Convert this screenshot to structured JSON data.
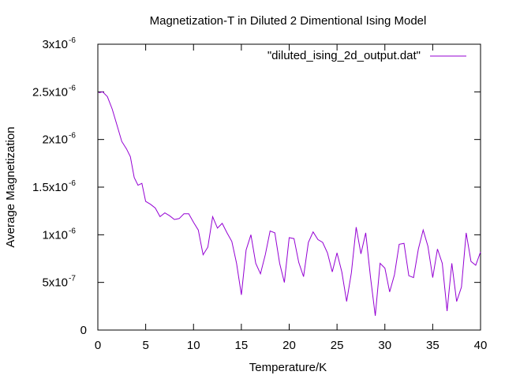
{
  "chart_data": {
    "type": "line",
    "title": "Magnetization-T in Diluted 2 Dimentional Ising Model",
    "xlabel": "Temperature/K",
    "ylabel": "Average Magnetization",
    "xlim": [
      0,
      40
    ],
    "ylim": [
      0,
      3e-06
    ],
    "grid": false,
    "legend_position": "top-right",
    "x_ticks": [
      {
        "value": 0,
        "label": "0"
      },
      {
        "value": 5,
        "label": "5"
      },
      {
        "value": 10,
        "label": "10"
      },
      {
        "value": 15,
        "label": "15"
      },
      {
        "value": 20,
        "label": "20"
      },
      {
        "value": 25,
        "label": "25"
      },
      {
        "value": 30,
        "label": "30"
      },
      {
        "value": 35,
        "label": "35"
      },
      {
        "value": 40,
        "label": "40"
      }
    ],
    "y_ticks": [
      {
        "value": 0,
        "mantissa": "0",
        "exponent": ""
      },
      {
        "value": 5e-07,
        "mantissa": "5x10",
        "exponent": "-7"
      },
      {
        "value": 1e-06,
        "mantissa": "1x10",
        "exponent": "-6"
      },
      {
        "value": 1.5e-06,
        "mantissa": "1.5x10",
        "exponent": "-6"
      },
      {
        "value": 2e-06,
        "mantissa": "2x10",
        "exponent": "-6"
      },
      {
        "value": 2.5e-06,
        "mantissa": "2.5x10",
        "exponent": "-6"
      },
      {
        "value": 3e-06,
        "mantissa": "3x10",
        "exponent": "-6"
      }
    ],
    "series": [
      {
        "name": "\"diluted_ising_2d_output.dat\"",
        "color": "#9400d3",
        "points": [
          [
            0.1,
            2.49e-06
          ],
          [
            0.5,
            2.5e-06
          ],
          [
            1.0,
            2.45e-06
          ],
          [
            1.5,
            2.32e-06
          ],
          [
            2.0,
            2.15e-06
          ],
          [
            2.5,
            1.98e-06
          ],
          [
            3.0,
            1.9e-06
          ],
          [
            3.4,
            1.82e-06
          ],
          [
            3.8,
            1.6e-06
          ],
          [
            4.2,
            1.52e-06
          ],
          [
            4.6,
            1.54e-06
          ],
          [
            5.0,
            1.35e-06
          ],
          [
            5.5,
            1.32e-06
          ],
          [
            6.0,
            1.28e-06
          ],
          [
            6.5,
            1.19e-06
          ],
          [
            7.0,
            1.23e-06
          ],
          [
            7.5,
            1.2e-06
          ],
          [
            8.0,
            1.16e-06
          ],
          [
            8.5,
            1.17e-06
          ],
          [
            9.0,
            1.22e-06
          ],
          [
            9.5,
            1.22e-06
          ],
          [
            10.0,
            1.13e-06
          ],
          [
            10.5,
            1.05e-06
          ],
          [
            11.0,
            7.9e-07
          ],
          [
            11.5,
            8.7e-07
          ],
          [
            12.0,
            1.19e-06
          ],
          [
            12.5,
            1.07e-06
          ],
          [
            13.0,
            1.12e-06
          ],
          [
            13.5,
            1.02e-06
          ],
          [
            14.0,
            9.3e-07
          ],
          [
            14.5,
            7e-07
          ],
          [
            15.0,
            3.7e-07
          ],
          [
            15.5,
            8.4e-07
          ],
          [
            16.0,
            1e-06
          ],
          [
            16.5,
            7e-07
          ],
          [
            17.0,
            5.9e-07
          ],
          [
            17.5,
            7.9e-07
          ],
          [
            18.0,
            1.04e-06
          ],
          [
            18.5,
            1.02e-06
          ],
          [
            19.0,
            7e-07
          ],
          [
            19.5,
            5e-07
          ],
          [
            20.0,
            9.7e-07
          ],
          [
            20.5,
            9.6e-07
          ],
          [
            21.0,
            7.1e-07
          ],
          [
            21.5,
            5.6e-07
          ],
          [
            22.0,
            9.2e-07
          ],
          [
            22.5,
            1.03e-06
          ],
          [
            23.0,
            9.5e-07
          ],
          [
            23.5,
            9.2e-07
          ],
          [
            24.0,
            8.1e-07
          ],
          [
            24.5,
            6.1e-07
          ],
          [
            25.0,
            8.1e-07
          ],
          [
            25.5,
            6.1e-07
          ],
          [
            26.0,
            3e-07
          ],
          [
            26.5,
            6e-07
          ],
          [
            27.0,
            1.08e-06
          ],
          [
            27.5,
            8e-07
          ],
          [
            28.0,
            1.02e-06
          ],
          [
            28.5,
            5.5e-07
          ],
          [
            29.0,
            1.5e-07
          ],
          [
            29.5,
            7e-07
          ],
          [
            30.0,
            6.5e-07
          ],
          [
            30.5,
            4e-07
          ],
          [
            31.0,
            5.8e-07
          ],
          [
            31.5,
            9e-07
          ],
          [
            32.0,
            9.1e-07
          ],
          [
            32.5,
            5.7e-07
          ],
          [
            33.0,
            5.5e-07
          ],
          [
            33.5,
            8.5e-07
          ],
          [
            34.0,
            1.05e-06
          ],
          [
            34.5,
            8.8e-07
          ],
          [
            35.0,
            5.5e-07
          ],
          [
            35.5,
            8.5e-07
          ],
          [
            36.0,
            7e-07
          ],
          [
            36.5,
            2e-07
          ],
          [
            37.0,
            7e-07
          ],
          [
            37.5,
            3e-07
          ],
          [
            38.0,
            4.5e-07
          ],
          [
            38.5,
            1.02e-06
          ],
          [
            39.0,
            7.2e-07
          ],
          [
            39.5,
            6.8e-07
          ],
          [
            40.0,
            8.2e-07
          ]
        ]
      }
    ]
  }
}
